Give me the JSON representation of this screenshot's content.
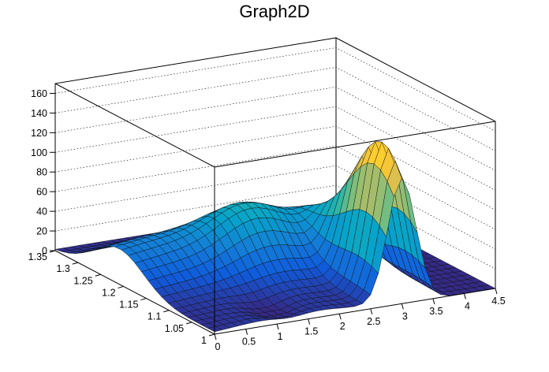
{
  "chart_data": {
    "type": "surface",
    "title": "Graph2D",
    "xlabel": "",
    "ylabel": "",
    "zlabel": "",
    "xlim": [
      0,
      4.5
    ],
    "ylim": [
      1,
      1.35
    ],
    "zlim": [
      0,
      170
    ],
    "x_ticks": [
      "0",
      "0.5",
      "1",
      "1.5",
      "2",
      "2.5",
      "3",
      "3.5",
      "4",
      "4.5"
    ],
    "y_ticks": [
      "1",
      "1.05",
      "1.1",
      "1.15",
      "1.2",
      "1.25",
      "1.3",
      "1.35"
    ],
    "z_ticks": [
      "0",
      "20",
      "40",
      "60",
      "80",
      "100",
      "120",
      "140",
      "160"
    ],
    "grid": true,
    "colormap": [
      "#352a87",
      "#0f5cdd",
      "#1481d6",
      "#06a4ca",
      "#2eb7a4",
      "#87bf77",
      "#d1bb59",
      "#fec832",
      "#f9fb0e"
    ],
    "peak": {
      "x": 3.0,
      "y": 1.05,
      "z": 152
    }
  }
}
